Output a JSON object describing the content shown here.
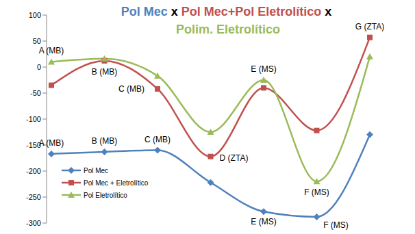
{
  "chart_data": {
    "type": "line",
    "title": "Pol Mec x Pol Mec+Pol Eletrolítico x Polim. Eletrolítico",
    "categories": [
      "A (MB)",
      "B (MB)",
      "C (MB)",
      "D (ZTA)",
      "E (MS)",
      "F (MS)",
      "G (ZTA)"
    ],
    "series": [
      {
        "name": "Pol Mec",
        "color": "#4F81BD",
        "marker": "diamond",
        "values": [
          -167,
          -163,
          -160,
          -222,
          -278,
          -288,
          -130
        ]
      },
      {
        "name": "Pol Mec + Eletrolítico",
        "color": "#C0504D",
        "marker": "square",
        "values": [
          -35,
          12,
          -42,
          -172,
          -40,
          -122,
          57
        ]
      },
      {
        "name": "Pol Eletrolítico",
        "color": "#9BBB59",
        "marker": "triangle",
        "values": [
          10,
          16,
          -17,
          -125,
          -25,
          -220,
          20
        ]
      }
    ],
    "ylim": [
      -300,
      100
    ],
    "yticks": [
      -300,
      -250,
      -200,
      -150,
      -100,
      -50,
      0,
      50,
      100
    ],
    "grid": false,
    "legend": "lower left",
    "tick_labels": "y"
  }
}
